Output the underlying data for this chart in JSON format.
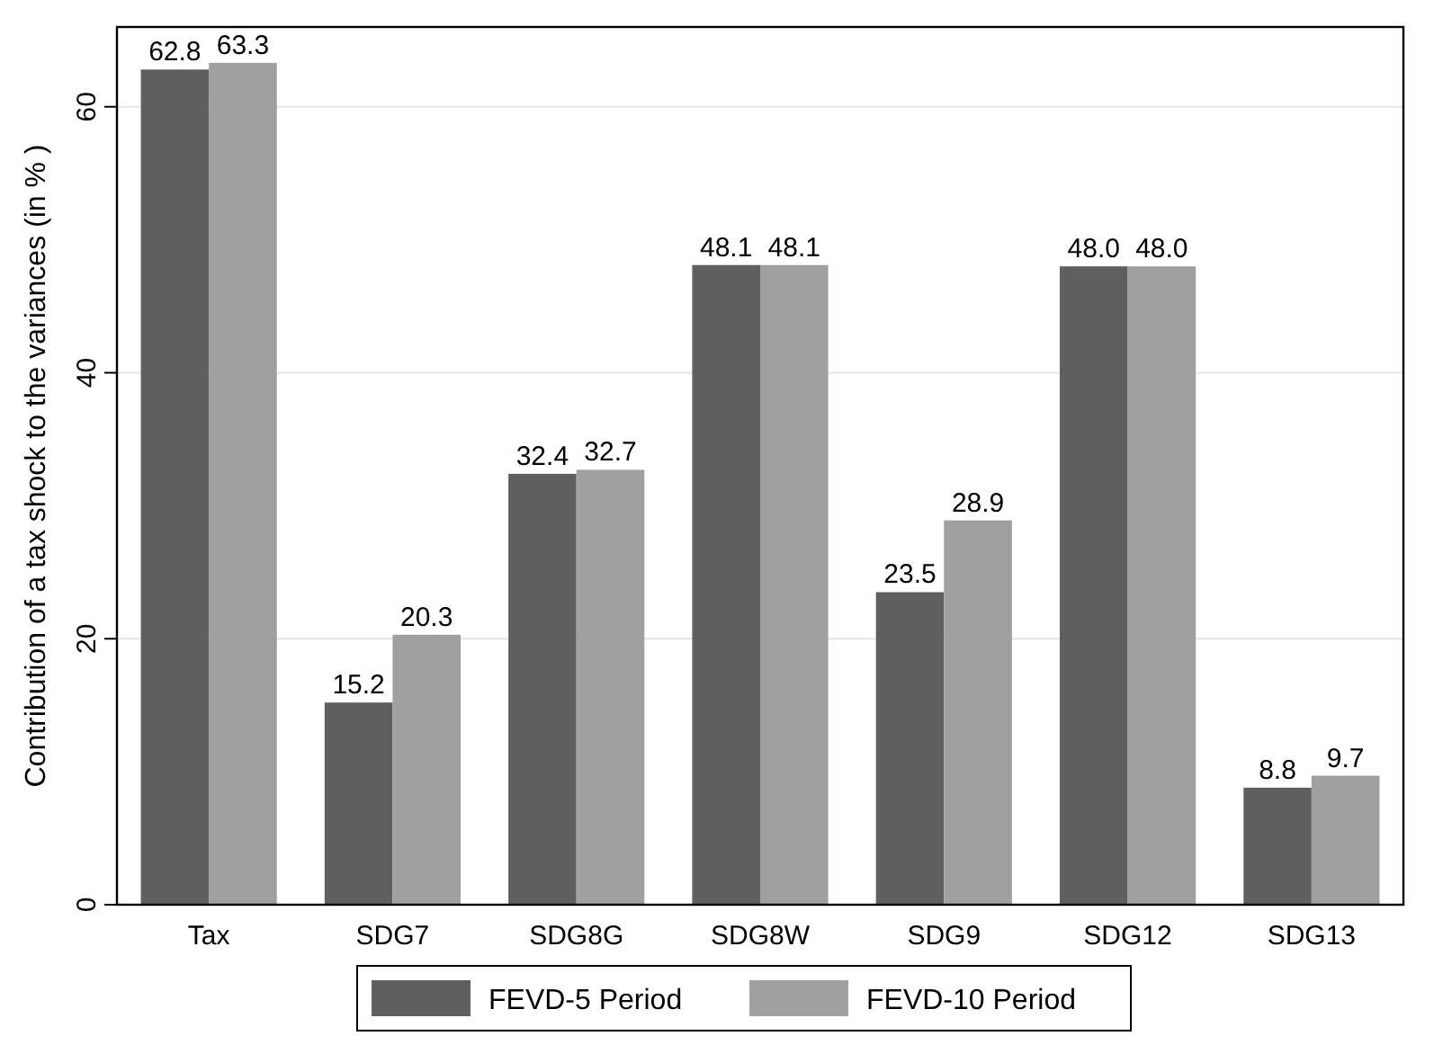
{
  "chart_data": {
    "type": "bar",
    "ylabel": "Contribution of a tax shock to the variances (in % )",
    "categories": [
      "Tax",
      "SDG7",
      "SDG8G",
      "SDG8W",
      "SDG9",
      "SDG12",
      "SDG13"
    ],
    "series": [
      {
        "name": "FEVD-5 Period",
        "color": "#5f5f5f",
        "values": [
          62.8,
          15.2,
          32.4,
          48.1,
          23.5,
          48.0,
          8.8
        ]
      },
      {
        "name": "FEVD-10 Period",
        "color": "#a0a0a0",
        "values": [
          63.3,
          20.3,
          32.7,
          48.1,
          28.9,
          48.0,
          9.7
        ]
      }
    ],
    "value_labels": [
      [
        "62.8",
        "15.2",
        "32.4",
        "48.1",
        "23.5",
        "48.0",
        "8.8"
      ],
      [
        "63.3",
        "20.3",
        "32.7",
        "48.1",
        "28.9",
        "48.0",
        "9.7"
      ]
    ],
    "ylim": [
      0,
      66
    ],
    "yticks": [
      0,
      20,
      40,
      60
    ],
    "grid": "y",
    "legend": "bottom"
  }
}
